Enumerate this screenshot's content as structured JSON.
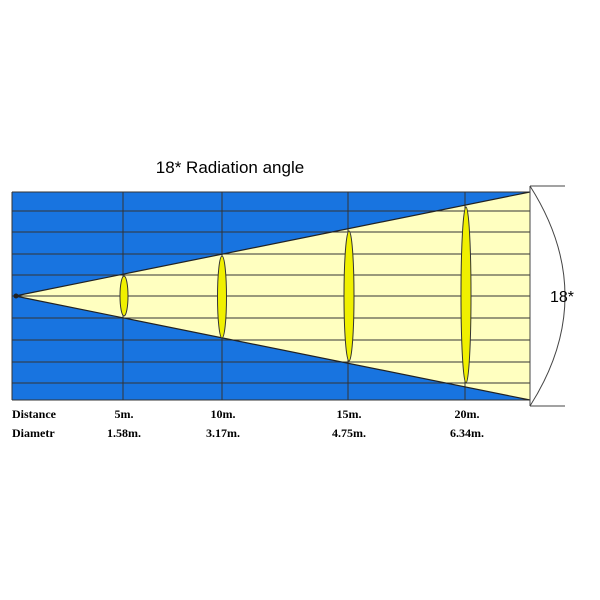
{
  "title": "18* Radiation angle",
  "row_labels": [
    "Distance",
    "Diametr"
  ],
  "columns": [
    {
      "distance": "5m.",
      "diameter": "1.58m."
    },
    {
      "distance": "10m.",
      "diameter": "3.17m."
    },
    {
      "distance": "15m.",
      "diameter": "4.75m."
    },
    {
      "distance": "20m.",
      "diameter": "6.34m."
    }
  ],
  "angle_label": "18*"
}
